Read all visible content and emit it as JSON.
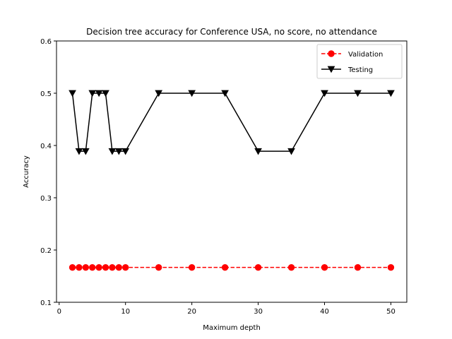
{
  "chart_data": {
    "type": "line",
    "title": "Decision tree accuracy for Conference USA, no score, no attendance",
    "xlabel": "Maximum depth",
    "ylabel": "Accuracy",
    "xlim": [
      -0.4,
      52.4
    ],
    "ylim": [
      0.1,
      0.6
    ],
    "xticks": [
      0,
      10,
      20,
      30,
      40,
      50
    ],
    "yticks": [
      0.1,
      0.2,
      0.3,
      0.4,
      0.5,
      0.6
    ],
    "xtick_labels": [
      "0",
      "10",
      "20",
      "30",
      "40",
      "50"
    ],
    "ytick_labels": [
      "0.1",
      "0.2",
      "0.3",
      "0.4",
      "0.5",
      "0.6"
    ],
    "grid": false,
    "legend_position": "top-right",
    "x": [
      2,
      3,
      4,
      5,
      6,
      7,
      8,
      9,
      10,
      15,
      20,
      25,
      30,
      35,
      40,
      45,
      50
    ],
    "series": [
      {
        "name": "Validation",
        "color": "#ff0000",
        "line_style": "dashed",
        "marker": "circle",
        "values": [
          0.1667,
          0.1667,
          0.1667,
          0.1667,
          0.1667,
          0.1667,
          0.1667,
          0.1667,
          0.1667,
          0.1667,
          0.1667,
          0.1667,
          0.1667,
          0.1667,
          0.1667,
          0.1667,
          0.1667
        ]
      },
      {
        "name": "Testing",
        "color": "#000000",
        "line_style": "solid",
        "marker": "triangle-down",
        "values": [
          0.5,
          0.389,
          0.389,
          0.5,
          0.5,
          0.5,
          0.389,
          0.389,
          0.389,
          0.5,
          0.5,
          0.5,
          0.389,
          0.389,
          0.5,
          0.5,
          0.5
        ]
      }
    ]
  }
}
